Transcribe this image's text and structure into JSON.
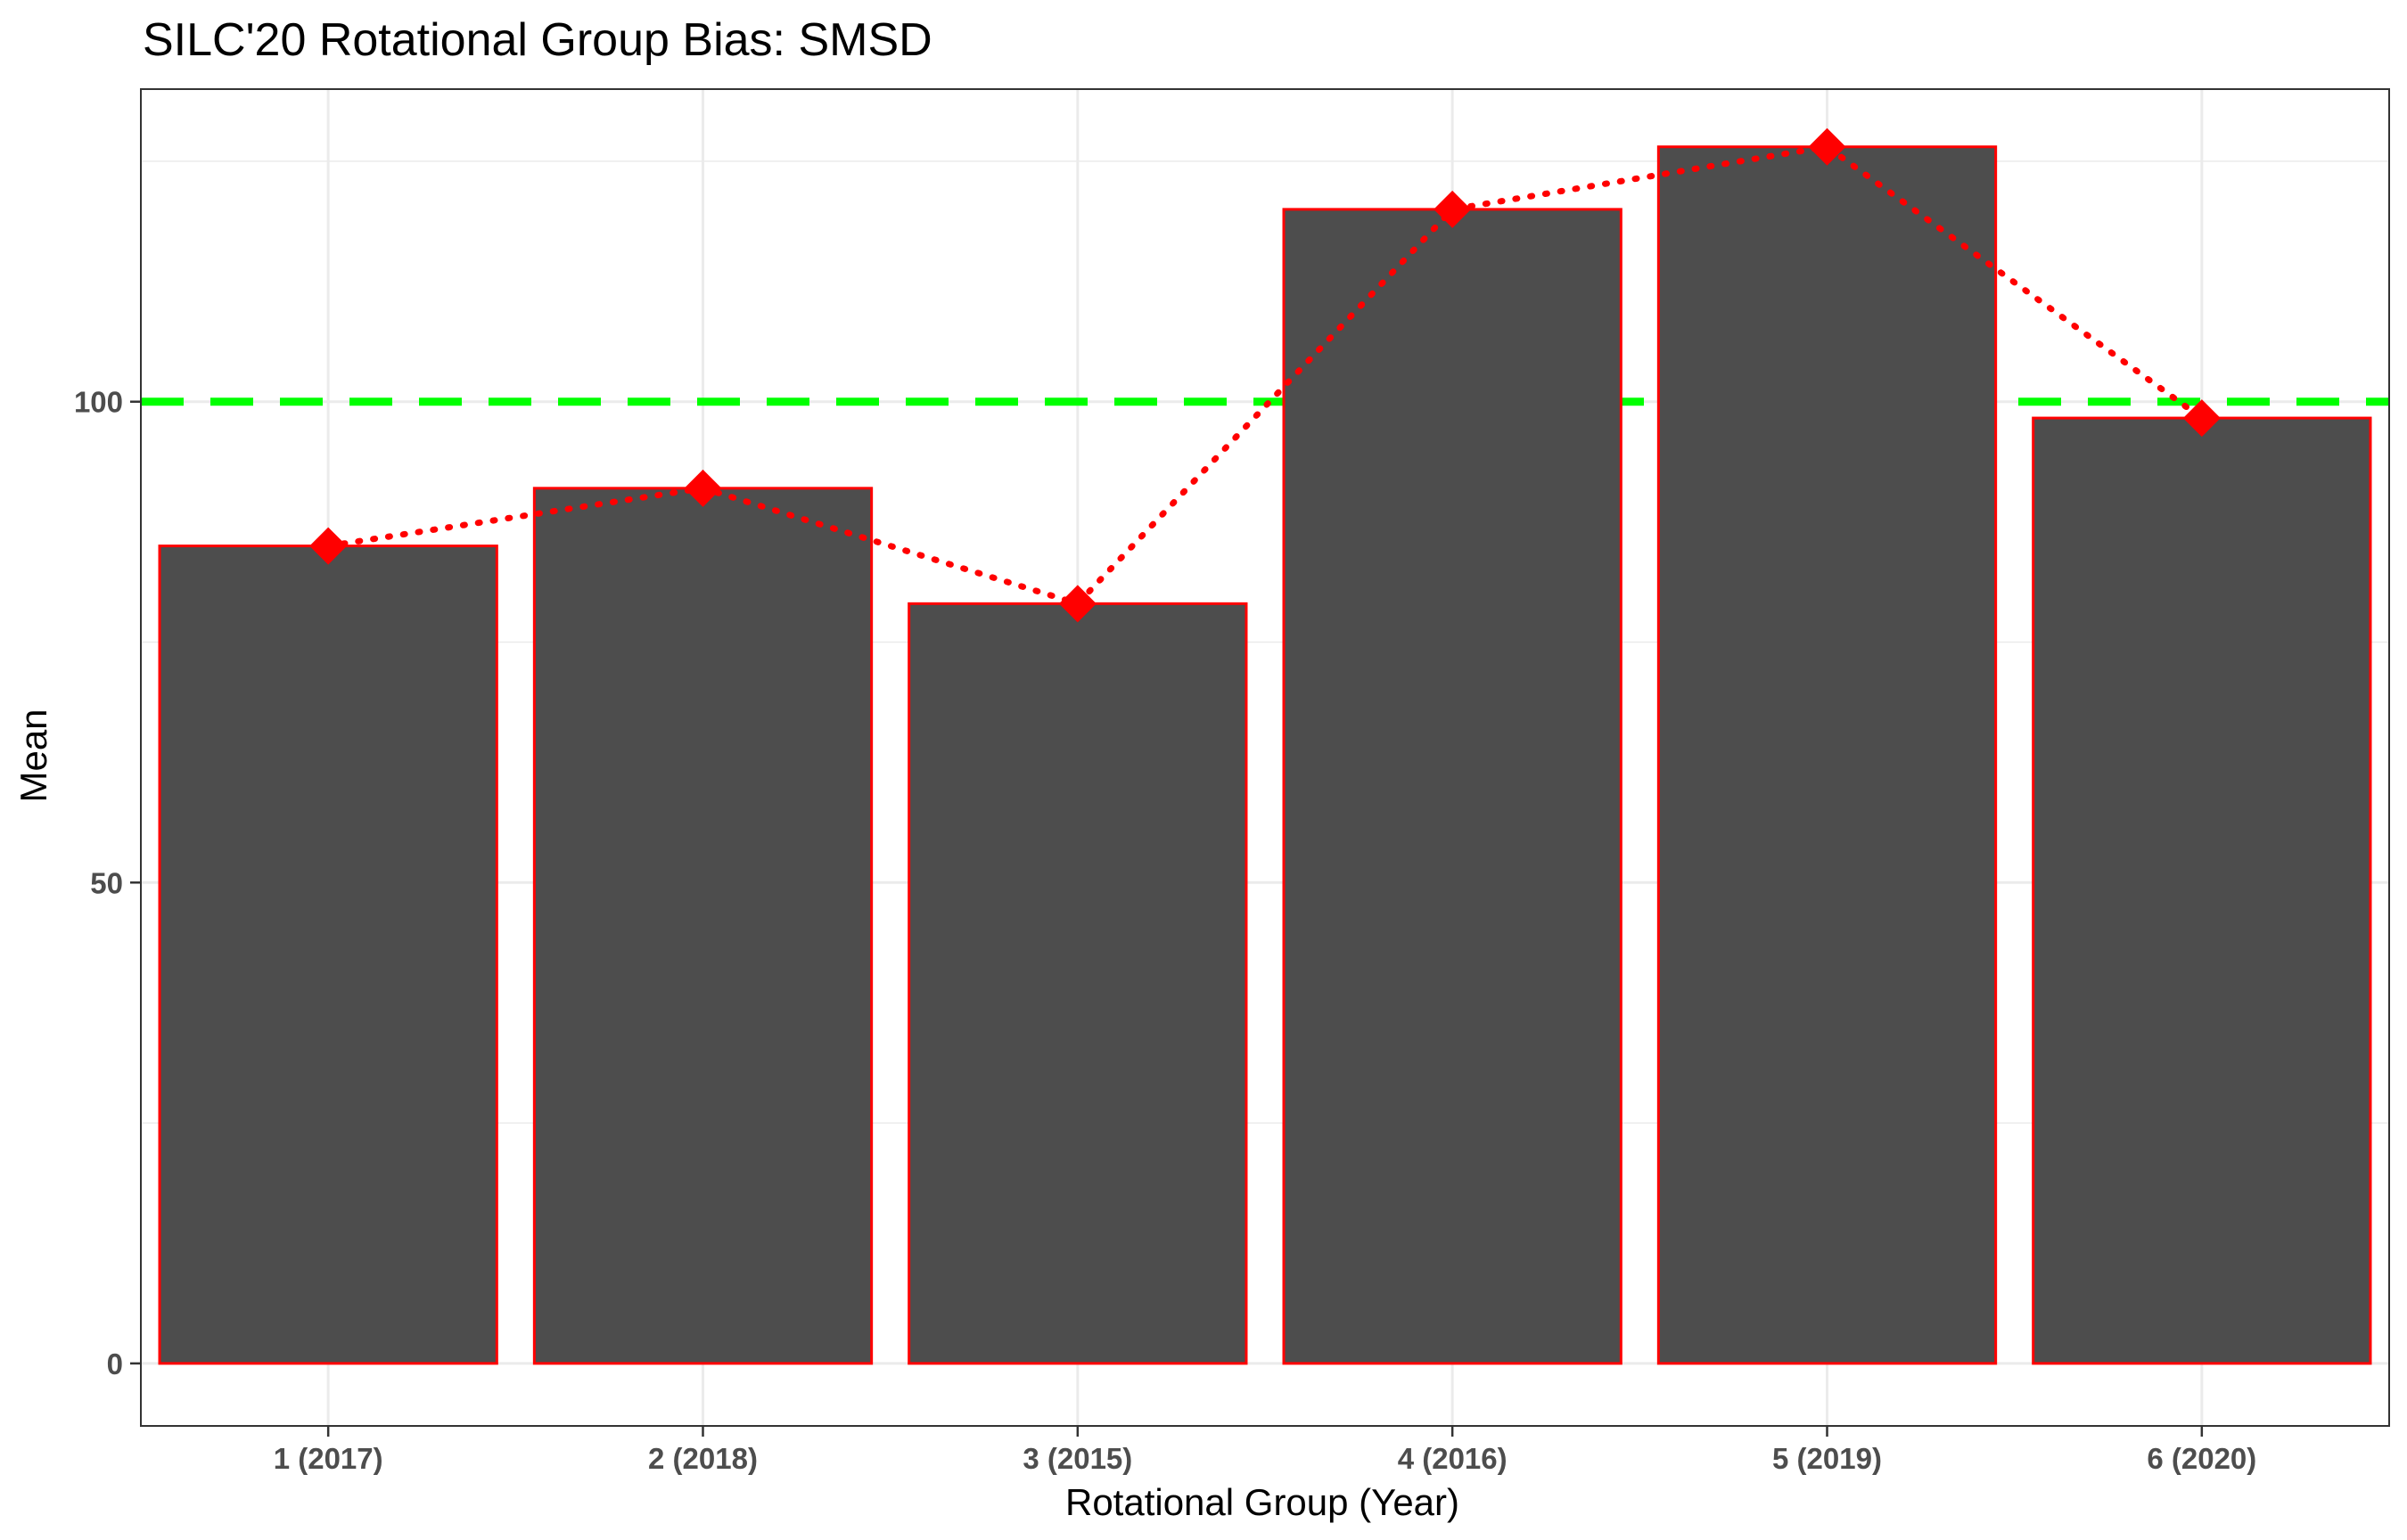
{
  "chart_data": {
    "type": "bar",
    "title": "SILC'20 Rotational Group Bias: SMSD",
    "xlabel": "Rotational Group (Year)",
    "ylabel": "Mean",
    "categories": [
      "1 (2017)",
      "2 (2018)",
      "3 (2015)",
      "4 (2016)",
      "5 (2019)",
      "6 (2020)"
    ],
    "values": [
      85,
      91,
      79,
      120,
      126.5,
      98.3
    ],
    "ylim": [
      -6.5,
      132.5
    ],
    "yticks": [
      0,
      50,
      100
    ],
    "reference_line": {
      "value": 100,
      "style": "dashed",
      "color": "#00ff00"
    },
    "overlay_line": {
      "style": "dotted",
      "color": "#ff0000",
      "marker": "diamond",
      "values": [
        85,
        91,
        79,
        120,
        126.5,
        98.3
      ]
    },
    "bar_fill": "#4d4d4d",
    "bar_outline": "#ff0000",
    "grid": true,
    "legend": "none"
  }
}
